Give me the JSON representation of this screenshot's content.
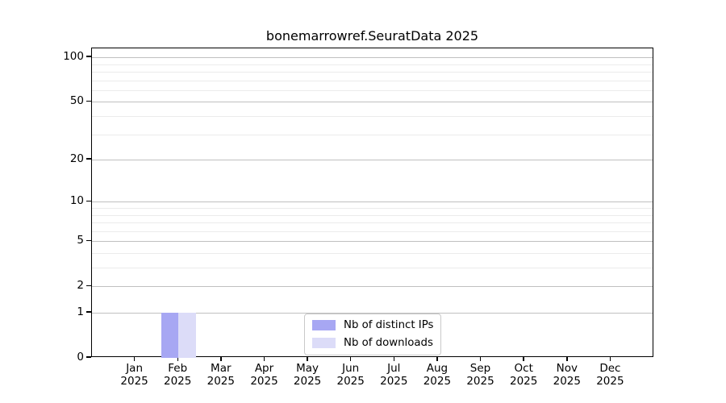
{
  "chart_data": {
    "type": "bar",
    "title": "bonemarrowref.SeuratData 2025",
    "categories": [
      "Jan",
      "Feb",
      "Mar",
      "Apr",
      "May",
      "Jun",
      "Jul",
      "Aug",
      "Sep",
      "Oct",
      "Nov",
      "Dec"
    ],
    "category_year": "2025",
    "series": [
      {
        "name": "Nb of distinct IPs",
        "color": "#a7a7f3",
        "values": [
          0,
          1,
          0,
          0,
          0,
          0,
          0,
          0,
          0,
          0,
          0,
          0
        ]
      },
      {
        "name": "Nb of downloads",
        "color": "#dcdcf8",
        "values": [
          0,
          1,
          0,
          0,
          0,
          0,
          0,
          0,
          0,
          0,
          0,
          0
        ]
      }
    ],
    "xlabel": "",
    "ylabel": "",
    "y_axis": {
      "scale": "log1p",
      "max": 115,
      "major_ticks": [
        0,
        1,
        2,
        5,
        10,
        20,
        50,
        100
      ],
      "minor_gridlines": [
        3,
        4,
        6,
        7,
        8,
        9,
        30,
        40,
        60,
        70,
        80,
        90
      ]
    },
    "grid": {
      "major_color": "#c0c0c0",
      "minor_color": "#ebebeb",
      "visible": true
    },
    "legend": {
      "position": "lower center"
    },
    "colors": {
      "background": "#ffffff",
      "spine": "#000000",
      "text": "#000000"
    }
  }
}
